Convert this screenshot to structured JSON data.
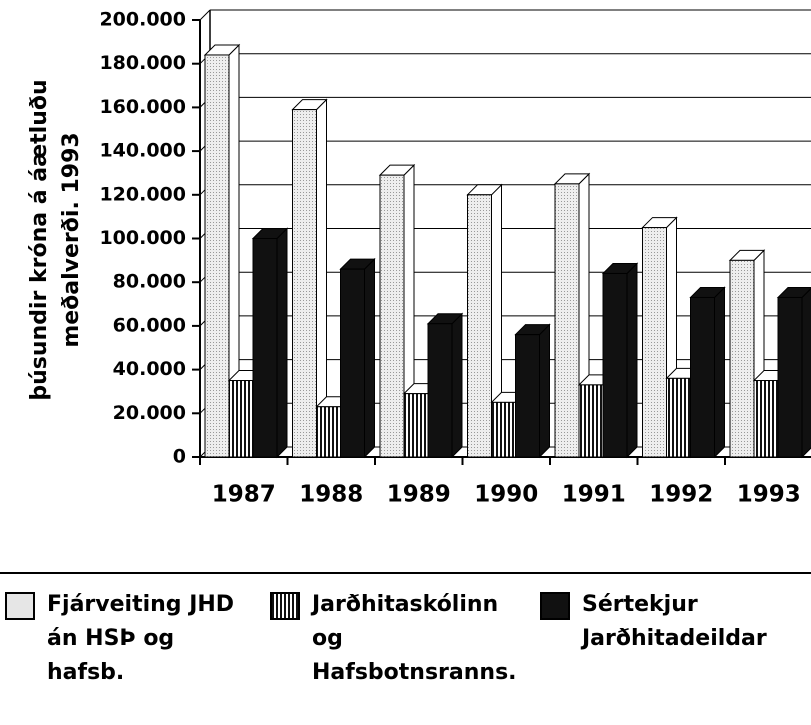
{
  "chart_data": {
    "type": "bar3d",
    "y_label": [
      "þúsundir króna á áætluðu",
      "meðalverði. 1993"
    ],
    "categories": [
      "1987",
      "1988",
      "1989",
      "1990",
      "1991",
      "1992",
      "1993"
    ],
    "series": [
      {
        "name": "Fjárveiting JHD án HSÞ og hafsb.",
        "color": "#e6e6e6",
        "values": [
          184000,
          159000,
          129000,
          120000,
          125000,
          105000,
          90000
        ]
      },
      {
        "name": "Jarðhitaskólinn og Hafsbotnsranns.",
        "color": "#777777",
        "values": [
          35000,
          23000,
          29000,
          25000,
          33000,
          36000,
          35000
        ]
      },
      {
        "name": "Sértekjur Jarðhitadeildar",
        "color": "#111111",
        "values": [
          100000,
          86000,
          61000,
          56000,
          84000,
          73000,
          73000
        ]
      }
    ],
    "ylim": [
      0,
      200000
    ],
    "yticks": [
      {
        "value": 0,
        "label": "0"
      },
      {
        "value": 20000,
        "label": "20.000"
      },
      {
        "value": 40000,
        "label": "40.000"
      },
      {
        "value": 60000,
        "label": "60.000"
      },
      {
        "value": 80000,
        "label": "80.000"
      },
      {
        "value": 100000,
        "label": "100.000"
      },
      {
        "value": 120000,
        "label": "120.000"
      },
      {
        "value": 140000,
        "label": "140.000"
      },
      {
        "value": 160000,
        "label": "160.000"
      },
      {
        "value": 180000,
        "label": "180.000"
      },
      {
        "value": 200000,
        "label": "200.000"
      }
    ],
    "grid": true
  }
}
